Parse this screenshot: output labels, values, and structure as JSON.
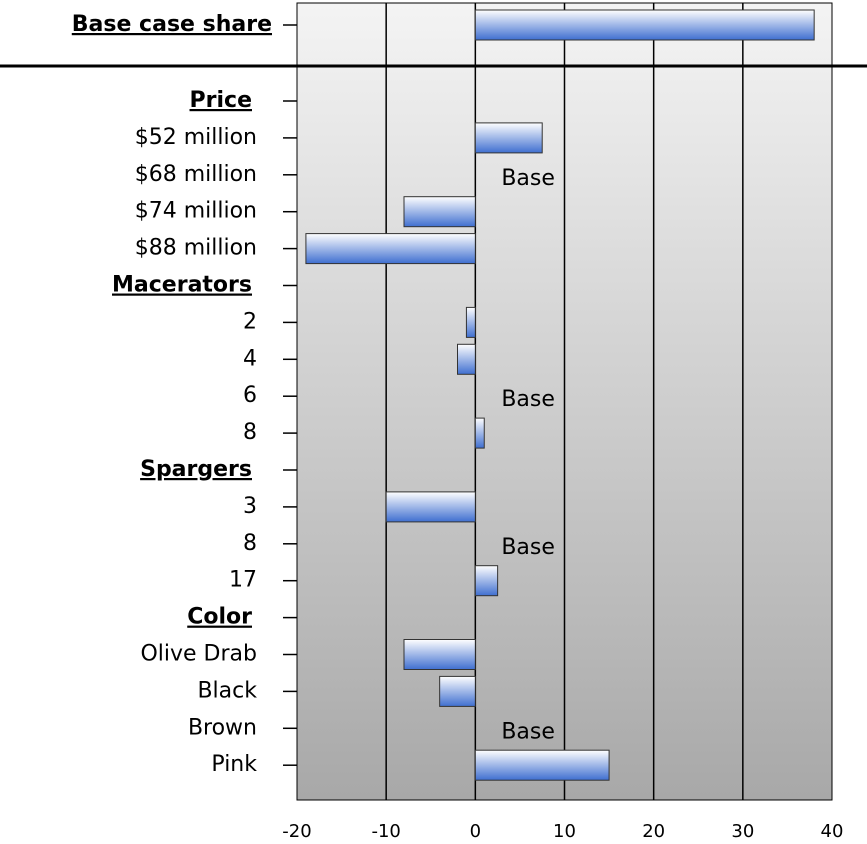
{
  "chart_data": {
    "type": "bar",
    "orientation": "horizontal",
    "categories": [
      "Base case share",
      "Price",
      "$52 million",
      "$68 million",
      "$74 million",
      "$88 million",
      "Macerators",
      "2",
      "4",
      "6",
      "8",
      "Spargers",
      "3",
      "8",
      "17",
      "Color",
      "Olive Drab",
      "Black",
      "Brown",
      "Pink"
    ],
    "values": [
      38,
      null,
      7.5,
      null,
      -8,
      -19,
      null,
      -1,
      -2,
      null,
      1,
      null,
      -10,
      null,
      2.5,
      null,
      -8,
      -4,
      null,
      15
    ],
    "value_labels": [
      null,
      null,
      null,
      "Base",
      null,
      null,
      null,
      null,
      null,
      "Base",
      null,
      null,
      null,
      "Base",
      null,
      null,
      null,
      null,
      "Base",
      null
    ],
    "color": "#3f6fd0",
    "xlim": [
      -20,
      40
    ],
    "xticks": [
      -20,
      -10,
      0,
      10,
      20,
      30,
      40
    ],
    "grid": true
  }
}
